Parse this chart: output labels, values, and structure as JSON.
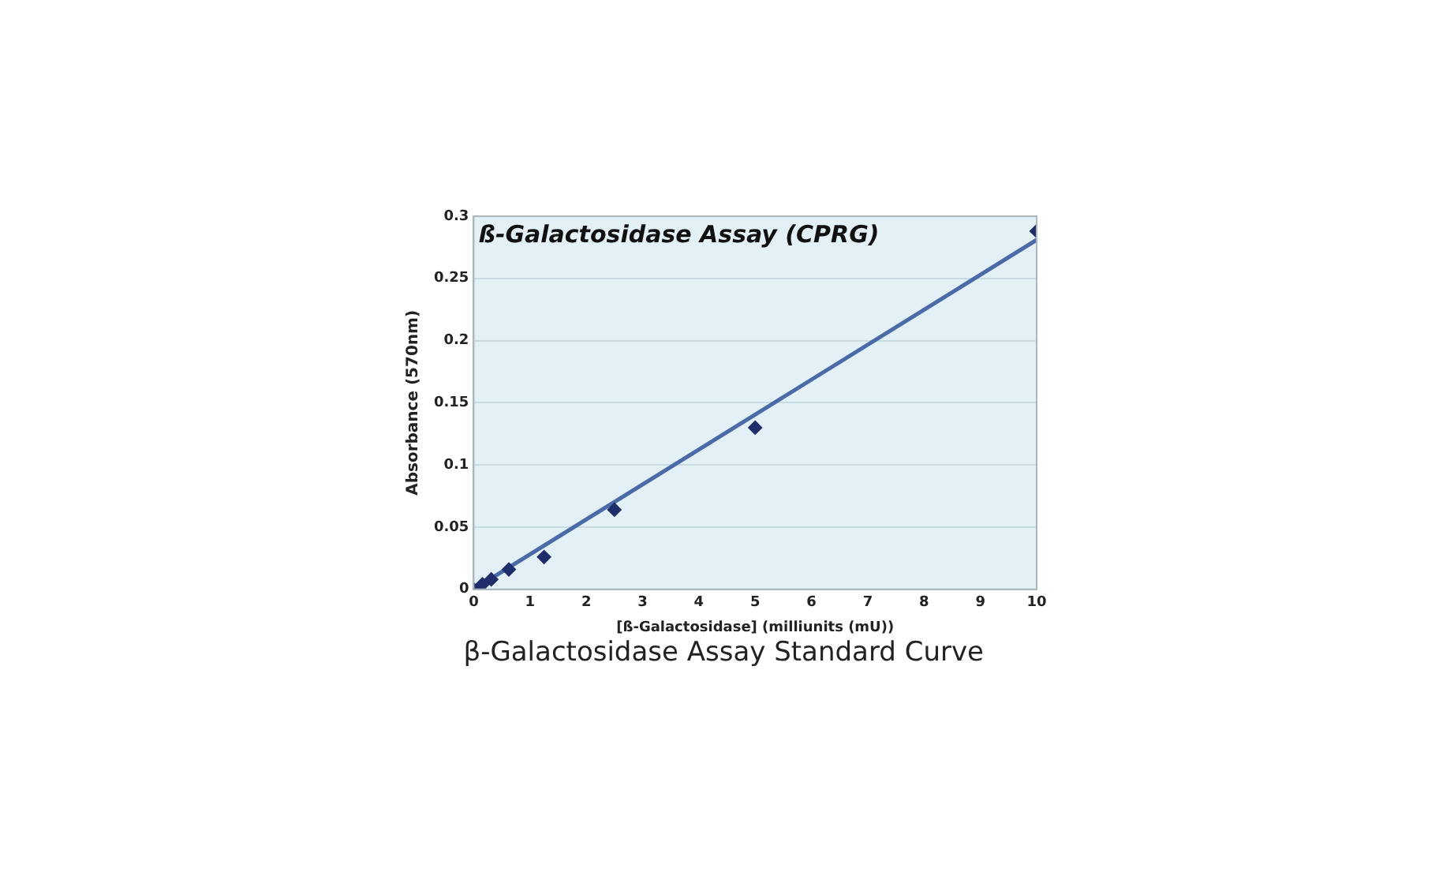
{
  "chart_data": {
    "type": "scatter",
    "title": "ß-Galactosidase Assay (CPRG)",
    "xlabel": "[ß-Galactosidase] (milliunits (mU))",
    "ylabel": "Absorbance (570nm)",
    "annotations": [
      "β-Galactosidase Assay Standard Curve"
    ],
    "x": [
      0,
      0.156,
      0.3125,
      0.625,
      1.25,
      2.5,
      5,
      10
    ],
    "series": [
      {
        "color": "#1f2d6b",
        "values": [
          0,
          0.004,
          0.008,
          0.016,
          0.026,
          0.064,
          0.13,
          0.288
        ],
        "marker": "diamond"
      },
      {
        "type": "line",
        "color": "#4a6aa8",
        "x": [
          0,
          10
        ],
        "values": [
          0,
          0.281
        ],
        "marker": "none",
        "line_style": "solid"
      }
    ],
    "xlim": [
      0,
      10
    ],
    "xticks": [
      0,
      1,
      2,
      3,
      4,
      5,
      6,
      7,
      8,
      9,
      10
    ],
    "ylim": [
      0,
      0.3
    ],
    "yticks": [
      0,
      0.05,
      0.1,
      0.15,
      0.2,
      0.25,
      0.3
    ],
    "grid": "y",
    "legend": false
  }
}
